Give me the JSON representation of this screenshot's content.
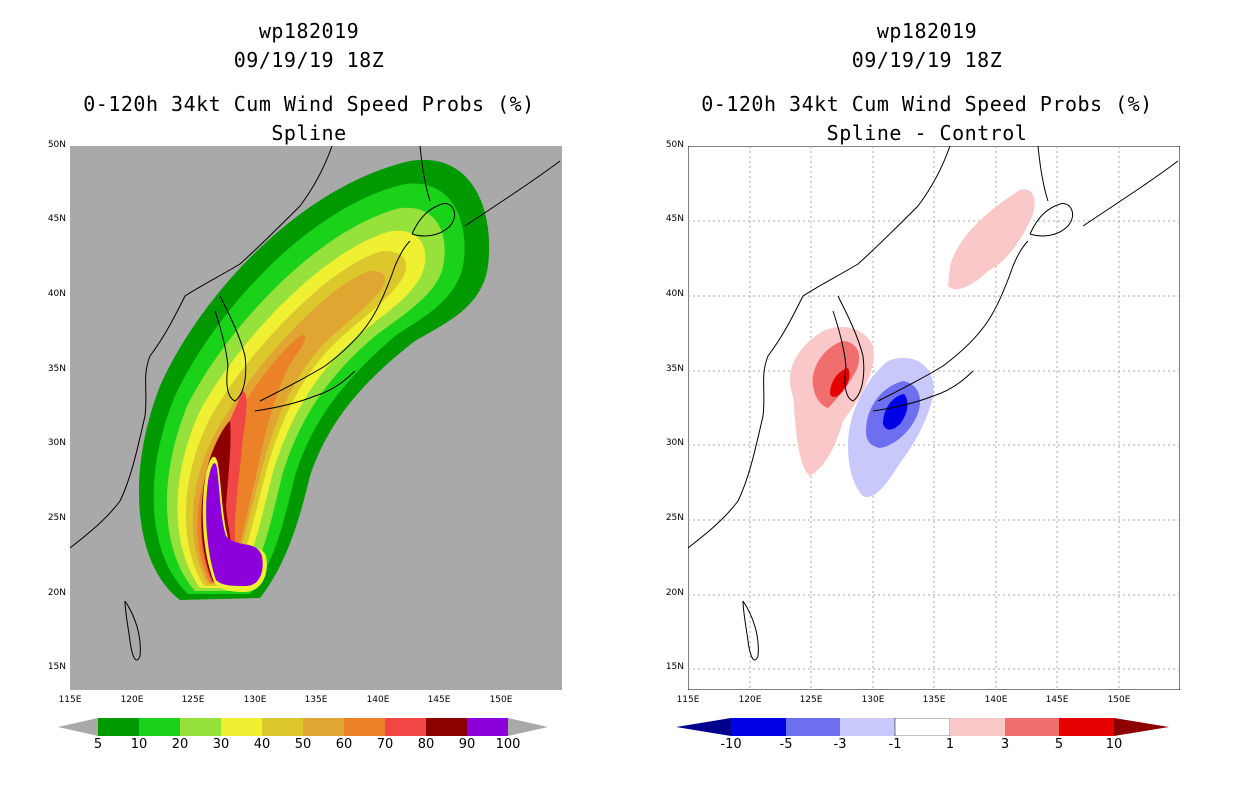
{
  "chart_data": [
    {
      "type": "heatmap",
      "title_lines": [
        "wp182019",
        "09/19/19 18Z",
        "0-120h 34kt Cum Wind Speed Probs (%)",
        "Spline"
      ],
      "x_ticks": [
        "115E",
        "120E",
        "125E",
        "130E",
        "135E",
        "140E",
        "145E",
        "150E"
      ],
      "y_ticks": [
        "50N",
        "45N",
        "40N",
        "35N",
        "30N",
        "25N",
        "20N",
        "15N"
      ],
      "xlim": [
        115,
        155
      ],
      "ylim": [
        13.5,
        50
      ],
      "background": "#a9a9a9",
      "colorbar": {
        "levels": [
          "5",
          "10",
          "20",
          "30",
          "40",
          "50",
          "60",
          "70",
          "80",
          "90",
          "100"
        ],
        "colors": [
          "#009a00",
          "#19d219",
          "#96e13c",
          "#f0f032",
          "#dcc82d",
          "#e1a532",
          "#eb8228",
          "#f04646",
          "#8c0000",
          "#8c00dc"
        ]
      }
    },
    {
      "type": "heatmap",
      "title_lines": [
        "wp182019",
        "09/19/19 18Z",
        "0-120h 34kt Cum Wind Speed Probs (%)",
        "Spline - Control"
      ],
      "x_ticks": [
        "115E",
        "120E",
        "125E",
        "130E",
        "135E",
        "140E",
        "145E",
        "150E"
      ],
      "y_ticks": [
        "50N",
        "45N",
        "40N",
        "35N",
        "30N",
        "25N",
        "20N",
        "15N"
      ],
      "xlim": [
        115,
        155
      ],
      "ylim": [
        13.5,
        50
      ],
      "background": "#ffffff",
      "colorbar": {
        "levels": [
          "-10",
          "-5",
          "-3",
          "-1",
          "1",
          "3",
          "5",
          "10"
        ],
        "colors": [
          "#00008c",
          "#0000e6",
          "#6e6ef0",
          "#c8c8fa",
          "#ffffff",
          "#fac8c8",
          "#f06e6e",
          "#e60000",
          "#8c0000"
        ]
      }
    }
  ]
}
